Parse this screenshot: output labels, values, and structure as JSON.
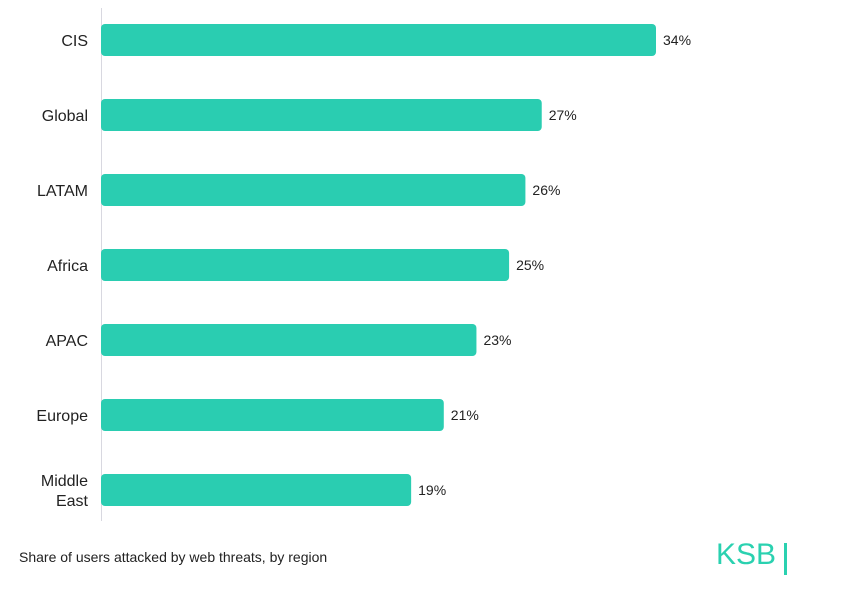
{
  "chart_data": {
    "type": "bar",
    "orientation": "horizontal",
    "categories": [
      "CIS",
      "Global",
      "LATAM",
      "Africa",
      "APAC",
      "Europe",
      "Middle East"
    ],
    "values": [
      34,
      27,
      26,
      25,
      23,
      21,
      19
    ],
    "value_labels": [
      "34%",
      "27%",
      "26%",
      "25%",
      "23%",
      "21%",
      "19%"
    ],
    "unit": "%",
    "xlim": [
      0,
      34
    ],
    "grid": false,
    "bar_color": "#2acdb1",
    "title": "",
    "xlabel": "",
    "ylabel": ""
  },
  "caption": "Share of users attacked by web threats, by region",
  "logo": {
    "text": "KSB",
    "color": "#2ad1b0"
  }
}
